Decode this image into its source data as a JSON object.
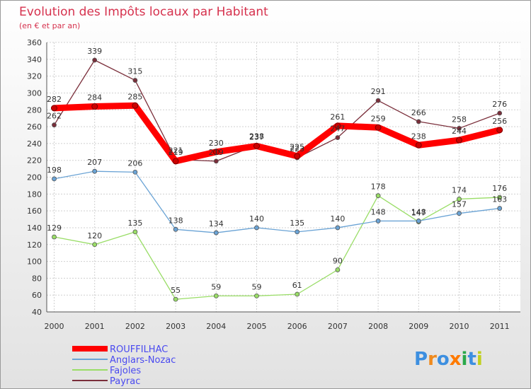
{
  "chart_data": {
    "type": "line",
    "title": "Evolution des Impôts locaux par Habitant",
    "subtitle": "(en € et par an)",
    "categories": [
      "2000",
      "2001",
      "2002",
      "2003",
      "2004",
      "2005",
      "2006",
      "2007",
      "2008",
      "2009",
      "2010",
      "2011"
    ],
    "ylim": [
      40,
      360
    ],
    "yticks": [
      40,
      60,
      80,
      100,
      120,
      140,
      160,
      180,
      200,
      220,
      240,
      260,
      280,
      300,
      320,
      340,
      360
    ],
    "grid": true,
    "legend_position": "bottom-left",
    "series": [
      {
        "name": "ROUFFILHAC",
        "color": "#ff0000",
        "values": [
          282,
          284,
          285,
          219,
          230,
          237,
          225,
          261,
          259,
          238,
          244,
          256
        ]
      },
      {
        "name": "Anglars-Nozac",
        "color": "#6aa3d5",
        "values": [
          198,
          207,
          206,
          138,
          134,
          140,
          135,
          140,
          148,
          148,
          157,
          163
        ]
      },
      {
        "name": "Fajoles",
        "color": "#99dd66",
        "values": [
          129,
          120,
          135,
          55,
          59,
          59,
          61,
          90,
          178,
          147,
          174,
          176
        ]
      },
      {
        "name": "Payrac",
        "color": "#7a2e3a",
        "values": [
          262,
          339,
          315,
          221,
          219,
          238,
          223,
          247,
          291,
          266,
          258,
          276
        ]
      }
    ]
  },
  "brand": {
    "text": "Proxiti"
  }
}
